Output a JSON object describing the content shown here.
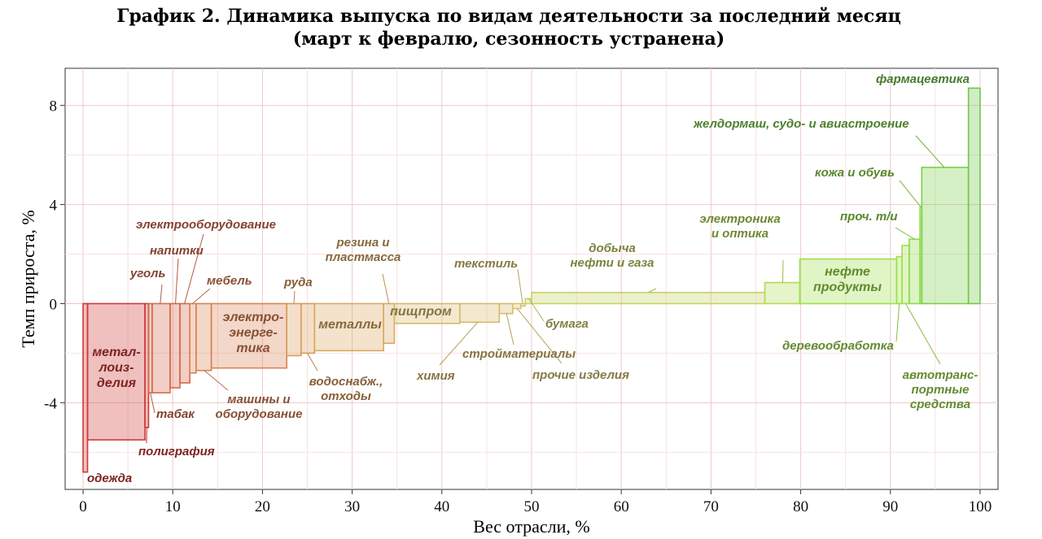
{
  "chart_data": {
    "type": "bar",
    "title": "График 2. Динамика выпуска по видам деятельности за последний месяц",
    "subtitle": "(март к февралю, сезонность устранена)",
    "xlabel": "Вес отрасли, %",
    "ylabel": "Темп прироста, %",
    "xlim": [
      -2,
      102
    ],
    "ylim": [
      -7.5,
      9.5
    ],
    "x_ticks": [
      "0",
      "10",
      "20",
      "30",
      "40",
      "50",
      "60",
      "70",
      "80",
      "90",
      "100"
    ],
    "y_ticks": [
      "-4",
      "0",
      "4",
      "8"
    ],
    "grid": true,
    "bars": [
      {
        "name": "одежда",
        "x0": 0.0,
        "x1": 0.5,
        "value": -6.8,
        "color": "#cc3a36",
        "label": "одежда"
      },
      {
        "name": "металлоизделия",
        "x0": 0.5,
        "x1": 6.9,
        "value": -5.5,
        "color": "#cc3a36",
        "label": "метал-\nлоиз-\nделия"
      },
      {
        "name": "полиграфия",
        "x0": 6.9,
        "x1": 7.3,
        "value": -5.0,
        "color": "#cc3a36",
        "label": "полиграфия"
      },
      {
        "name": "табак",
        "x0": 7.3,
        "x1": 7.7,
        "value": -3.6,
        "color": "#d56a4d",
        "label": "табак"
      },
      {
        "name": "уголь",
        "x0": 7.7,
        "x1": 9.7,
        "value": -3.6,
        "color": "#d56a4d",
        "label": "уголь"
      },
      {
        "name": "напитки",
        "x0": 9.7,
        "x1": 10.8,
        "value": -3.4,
        "color": "#d56a4d",
        "label": "напитки"
      },
      {
        "name": "электрооборудование",
        "x0": 10.8,
        "x1": 11.9,
        "value": -3.2,
        "color": "#d56a4d",
        "label": "электрооборудование"
      },
      {
        "name": "мебель",
        "x0": 11.9,
        "x1": 12.6,
        "value": -2.8,
        "color": "#d98354",
        "label": "мебель"
      },
      {
        "name": "машины и оборудование",
        "x0": 12.6,
        "x1": 14.3,
        "value": -2.7,
        "color": "#d98354",
        "label": "машины и\nоборудование"
      },
      {
        "name": "электроэнергетика",
        "x0": 14.3,
        "x1": 22.7,
        "value": -2.6,
        "color": "#d98354",
        "label": "электро-\nэнерге-\nтика"
      },
      {
        "name": "руда",
        "x0": 22.7,
        "x1": 24.3,
        "value": -2.1,
        "color": "#da9a5a",
        "label": "руда"
      },
      {
        "name": "водоснабж., отходы",
        "x0": 24.3,
        "x1": 25.8,
        "value": -2.0,
        "color": "#da9a5a",
        "label": "водоснабж.,\nотходы"
      },
      {
        "name": "металлы",
        "x0": 25.8,
        "x1": 33.5,
        "value": -1.9,
        "color": "#dba860",
        "label": "металлы"
      },
      {
        "name": "резина и пластмасса",
        "x0": 33.5,
        "x1": 34.7,
        "value": -1.6,
        "color": "#dba860",
        "label": "резина и\nпластмасса"
      },
      {
        "name": "пищпром",
        "x0": 34.7,
        "x1": 42.0,
        "value": -0.8,
        "color": "#d6bb6a",
        "label": "пищпром"
      },
      {
        "name": "химия",
        "x0": 42.0,
        "x1": 46.4,
        "value": -0.75,
        "color": "#d6bb6a",
        "label": "химия"
      },
      {
        "name": "стройматериалы",
        "x0": 46.4,
        "x1": 47.9,
        "value": -0.4,
        "color": "#d6bb6a",
        "label": "стройматериалы"
      },
      {
        "name": "прочие изделия",
        "x0": 47.9,
        "x1": 48.8,
        "value": -0.2,
        "color": "#d6c470",
        "label": "прочие изделия"
      },
      {
        "name": "текстиль",
        "x0": 48.8,
        "x1": 49.3,
        "value": -0.1,
        "color": "#d6c470",
        "label": "текстиль"
      },
      {
        "name": "бумага",
        "x0": 49.3,
        "x1": 50.0,
        "value": 0.2,
        "color": "#ccd06e",
        "label": "бумага"
      },
      {
        "name": "добыча нефти и газа",
        "x0": 50.0,
        "x1": 76.0,
        "value": 0.45,
        "color": "#c4d364",
        "label": "добыча\nнефти и газа"
      },
      {
        "name": "электроника и оптика",
        "x0": 76.0,
        "x1": 79.9,
        "value": 0.85,
        "color": "#b2dc56",
        "label": "электроника\nи оптика"
      },
      {
        "name": "нефтепродукты",
        "x0": 79.9,
        "x1": 90.7,
        "value": 1.8,
        "color": "#9ee04c",
        "label": "нефте\nпродукты"
      },
      {
        "name": "деревообработка",
        "x0": 90.7,
        "x1": 91.3,
        "value": 1.9,
        "color": "#9ee04c",
        "label": "деревообработка"
      },
      {
        "name": "автотранспортные средства",
        "x0": 91.3,
        "x1": 92.1,
        "value": 2.35,
        "color": "#9ee04c",
        "label": "автотранс-\nпортные\nсредства"
      },
      {
        "name": "прочие транспортные средства",
        "x0": 92.1,
        "x1": 93.3,
        "value": 2.6,
        "color": "#8fd94b",
        "label": "проч. т/и"
      },
      {
        "name": "кожа и обувь",
        "x0": 93.3,
        "x1": 93.5,
        "value": 3.9,
        "color": "#8fd94b",
        "label": "кожа и обувь"
      },
      {
        "name": "железнодорожное, судо- и авиастроение",
        "x0": 93.5,
        "x1": 98.7,
        "value": 5.5,
        "color": "#7ccf4a",
        "label": "желдормаш, судо- и авиастроение"
      },
      {
        "name": "фармацевтика",
        "x0": 98.7,
        "x1": 100.0,
        "value": 8.7,
        "color": "#6fc84a",
        "label": "фармацевтика"
      }
    ]
  }
}
